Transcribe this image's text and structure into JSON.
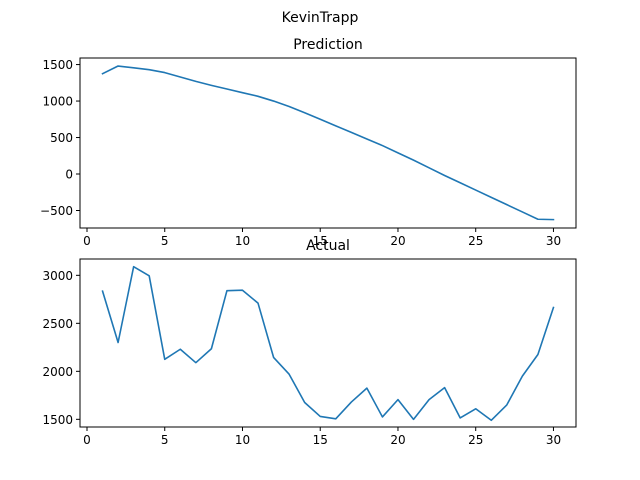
{
  "figure": {
    "suptitle": "KevinTrapp"
  },
  "chart_data": [
    {
      "type": "line",
      "title": "Prediction",
      "xlabel": "",
      "ylabel": "",
      "xlim": [
        -0.45,
        31.45
      ],
      "ylim": [
        -740,
        1590
      ],
      "xticks": [
        0,
        5,
        10,
        15,
        20,
        25,
        30
      ],
      "yticks": [
        -500,
        0,
        500,
        1000,
        1500
      ],
      "grid": false,
      "color": "#1f77b4",
      "x": [
        1,
        2,
        3,
        4,
        5,
        6,
        7,
        8,
        9,
        10,
        11,
        12,
        13,
        14,
        15,
        16,
        17,
        18,
        19,
        20,
        21,
        22,
        23,
        24,
        25,
        26,
        27,
        28,
        29,
        30
      ],
      "y": [
        1375,
        1480,
        1455,
        1430,
        1390,
        1330,
        1270,
        1215,
        1165,
        1115,
        1065,
        1000,
        925,
        840,
        750,
        660,
        570,
        480,
        390,
        290,
        190,
        85,
        -20,
        -120,
        -220,
        -320,
        -420,
        -520,
        -620,
        -625
      ]
    },
    {
      "type": "line",
      "title": "Actual",
      "xlabel": "",
      "ylabel": "",
      "xlim": [
        -0.45,
        31.45
      ],
      "ylim": [
        1420,
        3170
      ],
      "xticks": [
        0,
        5,
        10,
        15,
        20,
        25,
        30
      ],
      "yticks": [
        1500,
        2000,
        2500,
        3000
      ],
      "grid": false,
      "color": "#1f77b4",
      "x": [
        1,
        2,
        3,
        4,
        5,
        6,
        7,
        8,
        9,
        10,
        11,
        12,
        13,
        14,
        15,
        16,
        17,
        18,
        19,
        20,
        21,
        22,
        23,
        24,
        25,
        26,
        27,
        28,
        29,
        30
      ],
      "y": [
        2835,
        2300,
        3090,
        2995,
        2125,
        2230,
        2090,
        2235,
        2840,
        2845,
        2710,
        2145,
        1970,
        1675,
        1530,
        1505,
        1680,
        1825,
        1525,
        1705,
        1500,
        1705,
        1830,
        1515,
        1610,
        1490,
        1650,
        1950,
        2175,
        2665
      ]
    }
  ]
}
